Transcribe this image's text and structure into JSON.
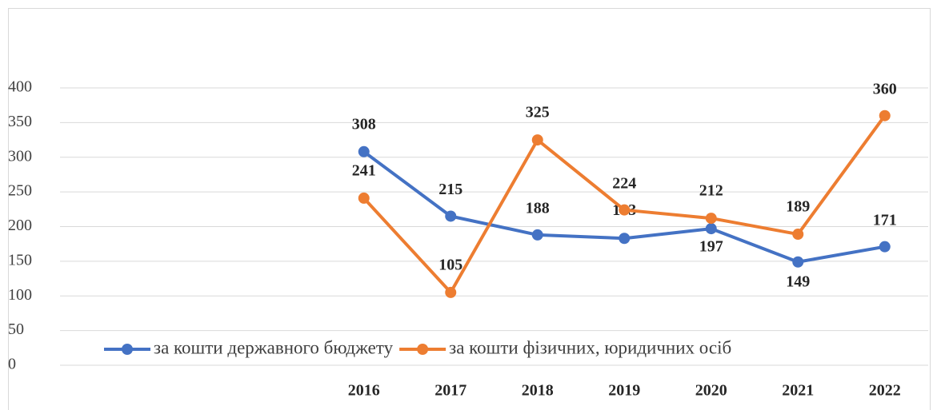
{
  "chart_data": {
    "type": "line",
    "categories": [
      null,
      null,
      null,
      "2016",
      "2017",
      "2018",
      "2019",
      "2020",
      "2021",
      "2022"
    ],
    "series": [
      {
        "name": "за кошти державного бюджету",
        "color": "#4472c4",
        "values": [
          null,
          null,
          null,
          308,
          215,
          188,
          183,
          197,
          149,
          171
        ]
      },
      {
        "name": "за кошти фізичних, юридичних осіб",
        "color": "#ed7d31",
        "values": [
          null,
          null,
          null,
          241,
          105,
          325,
          224,
          212,
          189,
          360
        ]
      }
    ],
    "ylim": [
      0,
      400
    ],
    "yticks": [
      0,
      50,
      100,
      150,
      200,
      250,
      300,
      350,
      400
    ],
    "grid": true,
    "legend": "bottom"
  }
}
